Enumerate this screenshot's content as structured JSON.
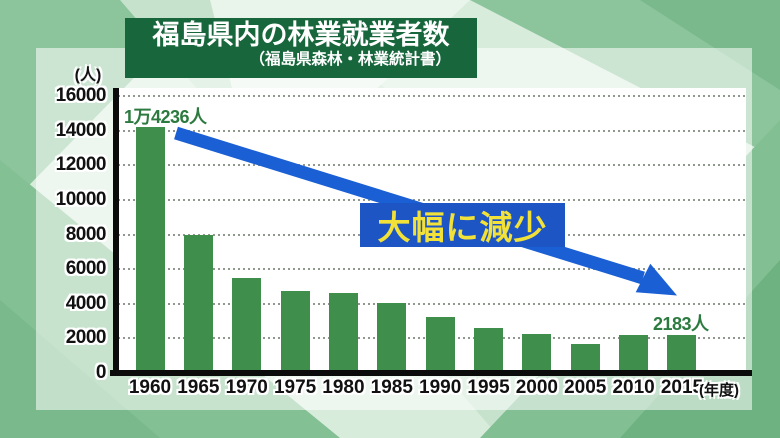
{
  "title": {
    "main": "福島県内の林業就業者数",
    "sub": "（福島県森林・林業統計書）"
  },
  "chart_data": {
    "type": "bar",
    "title": "福島県内の林業就業者数",
    "source": "（福島県森林・林業統計書）",
    "categories": [
      "1960",
      "1965",
      "1970",
      "1975",
      "1980",
      "1985",
      "1990",
      "1995",
      "2000",
      "2005",
      "2010",
      "2015"
    ],
    "values": [
      14236,
      7950,
      5500,
      4750,
      4600,
      4050,
      3250,
      2600,
      2250,
      1700,
      2200,
      2183
    ],
    "y_unit_label": "(人)",
    "x_unit_label": "(年度)",
    "ylim": [
      0,
      16000
    ],
    "ytick_step": 2000,
    "yticks": [
      "16000",
      "14000",
      "12000",
      "10000",
      "8000",
      "6000",
      "4000",
      "2000",
      "0"
    ],
    "grid": "dotted horizontal gridlines",
    "legend": "none",
    "annotations": {
      "first_value_label": "1万4236人",
      "last_value_label": "2183人",
      "trend_label": "大幅に減少",
      "trend_arrow": "blue arrow from 1960 bar top down to 2015 bar"
    },
    "colors": {
      "bar": "#3f8e4c",
      "arrow": "#1a5fd4",
      "trend_box_bg": "#1d56c4",
      "trend_box_text": "#f2e138",
      "title_bg": "#17663c",
      "title_text": "#ffffff",
      "value_label": "#2c7a3f",
      "axis": "#0b0b0b",
      "gridline": "#8f978f"
    }
  }
}
